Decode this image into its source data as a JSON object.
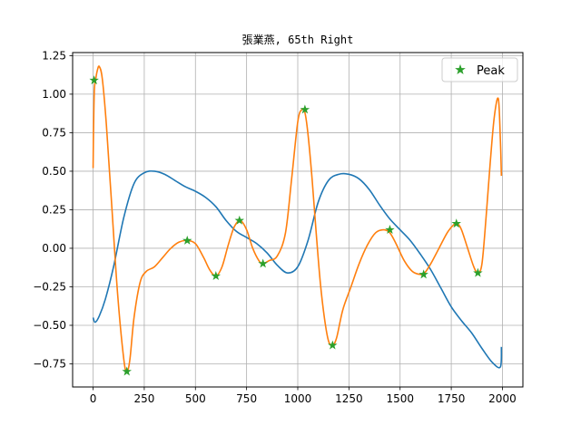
{
  "chart_data": {
    "type": "line",
    "title": "張業燕, 65th Right",
    "xlabel": "",
    "ylabel": "",
    "xlim": [
      -100,
      2100
    ],
    "ylim": [
      -0.9,
      1.27
    ],
    "xticks": [
      0,
      250,
      500,
      750,
      1000,
      1250,
      1500,
      1750,
      2000
    ],
    "xtick_labels": [
      "0",
      "250",
      "500",
      "750",
      "1000",
      "1250",
      "1500",
      "1750",
      "2000"
    ],
    "yticks": [
      -0.75,
      -0.5,
      -0.25,
      0.0,
      0.25,
      0.5,
      0.75,
      1.0,
      1.25
    ],
    "ytick_labels": [
      "−0.75",
      "−0.50",
      "−0.25",
      "0.00",
      "0.25",
      "0.50",
      "0.75",
      "1.00",
      "1.25"
    ],
    "grid": true,
    "legend_position": "top-right",
    "series": [
      {
        "color": "#1f77b4",
        "x": [
          0,
          10,
          30,
          60,
          100,
          150,
          200,
          250,
          300,
          350,
          400,
          450,
          500,
          550,
          600,
          650,
          700,
          750,
          800,
          850,
          900,
          950,
          1000,
          1050,
          1100,
          1150,
          1200,
          1250,
          1300,
          1350,
          1400,
          1450,
          1500,
          1550,
          1600,
          1650,
          1700,
          1750,
          1800,
          1850,
          1900,
          1950,
          1990,
          1995
        ],
        "y": [
          -0.45,
          -0.48,
          -0.44,
          -0.33,
          -0.12,
          0.2,
          0.42,
          0.49,
          0.5,
          0.48,
          0.44,
          0.4,
          0.37,
          0.33,
          0.27,
          0.18,
          0.11,
          0.07,
          0.03,
          -0.03,
          -0.11,
          -0.16,
          -0.12,
          0.05,
          0.3,
          0.44,
          0.48,
          0.48,
          0.45,
          0.38,
          0.28,
          0.19,
          0.12,
          0.05,
          -0.04,
          -0.14,
          -0.26,
          -0.38,
          -0.47,
          -0.55,
          -0.65,
          -0.74,
          -0.77,
          -0.64
        ]
      },
      {
        "color": "#ff7f0e",
        "x": [
          0,
          2,
          6,
          12,
          20,
          30,
          45,
          65,
          90,
          120,
          150,
          165,
          180,
          200,
          230,
          260,
          300,
          340,
          380,
          420,
          460,
          500,
          540,
          570,
          600,
          630,
          660,
          690,
          720,
          750,
          780,
          810,
          830,
          860,
          900,
          940,
          970,
          1000,
          1020,
          1035,
          1050,
          1070,
          1090,
          1110,
          1130,
          1150,
          1170,
          1190,
          1220,
          1260,
          1300,
          1340,
          1380,
          1420,
          1450,
          1480,
          1520,
          1560,
          1600,
          1620,
          1650,
          1690,
          1730,
          1760,
          1780,
          1800,
          1830,
          1860,
          1880,
          1900,
          1920,
          1940,
          1960,
          1980,
          1990,
          1995
        ],
        "y": [
          0.52,
          0.75,
          1.02,
          1.09,
          1.15,
          1.18,
          1.1,
          0.8,
          0.3,
          -0.3,
          -0.72,
          -0.8,
          -0.72,
          -0.45,
          -0.22,
          -0.15,
          -0.12,
          -0.06,
          0.0,
          0.04,
          0.05,
          0.03,
          -0.06,
          -0.14,
          -0.18,
          -0.12,
          0.02,
          0.14,
          0.18,
          0.12,
          0.0,
          -0.08,
          -0.1,
          -0.08,
          -0.05,
          0.1,
          0.45,
          0.82,
          0.9,
          0.88,
          0.74,
          0.45,
          0.1,
          -0.22,
          -0.45,
          -0.6,
          -0.63,
          -0.58,
          -0.4,
          -0.25,
          -0.1,
          0.02,
          0.1,
          0.12,
          0.1,
          0.03,
          -0.08,
          -0.15,
          -0.17,
          -0.16,
          -0.1,
          0.0,
          0.1,
          0.15,
          0.16,
          0.12,
          0.0,
          -0.12,
          -0.16,
          -0.1,
          0.2,
          0.55,
          0.85,
          0.97,
          0.7,
          0.47
        ]
      },
      {
        "name": "Peak",
        "marker": "star",
        "color": "#2ca02c",
        "x": [
          5,
          165,
          460,
          600,
          715,
          830,
          1035,
          1170,
          1450,
          1615,
          1775,
          1880
        ],
        "y": [
          1.09,
          -0.8,
          0.05,
          -0.18,
          0.18,
          -0.1,
          0.9,
          -0.63,
          0.12,
          -0.17,
          0.16,
          -0.16
        ]
      }
    ]
  }
}
